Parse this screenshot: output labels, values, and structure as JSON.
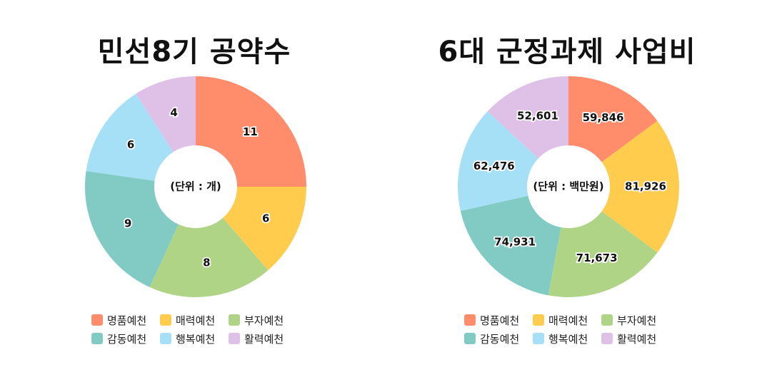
{
  "colors": {
    "명품예천": "#FF8C6B",
    "매력예천": "#FFCC4D",
    "부자예천": "#AFD485",
    "감동예천": "#82CBC4",
    "행복예천": "#A6E0F7",
    "활력예천": "#DFC0E6"
  },
  "legend_rows": [
    [
      "명품예천",
      "매력예천",
      "부자예천"
    ],
    [
      "감동예천",
      "행복예천",
      "활력예천"
    ]
  ],
  "chart_data": [
    {
      "type": "pie",
      "donut": true,
      "title": "민선8기 공약수",
      "center_label": "(단위 : 개)",
      "categories": [
        "명품예천",
        "매력예천",
        "부자예천",
        "감동예천",
        "행복예천",
        "활력예천"
      ],
      "values": [
        11,
        6,
        8,
        9,
        6,
        4
      ],
      "value_labels": [
        "11",
        "6",
        "8",
        "9",
        "6",
        "4"
      ],
      "legend_position": "bottom"
    },
    {
      "type": "pie",
      "donut": true,
      "title": "6대 군정과제 사업비",
      "center_label": "(단위 : 백만원)",
      "categories": [
        "명품예천",
        "매력예천",
        "부자예천",
        "감동예천",
        "행복예천",
        "활력예천"
      ],
      "values": [
        59846,
        81926,
        71673,
        74931,
        62476,
        52601
      ],
      "value_labels": [
        "59,846",
        "81,926",
        "71,673",
        "74,931",
        "62,476",
        "52,601"
      ],
      "legend_position": "bottom"
    }
  ]
}
